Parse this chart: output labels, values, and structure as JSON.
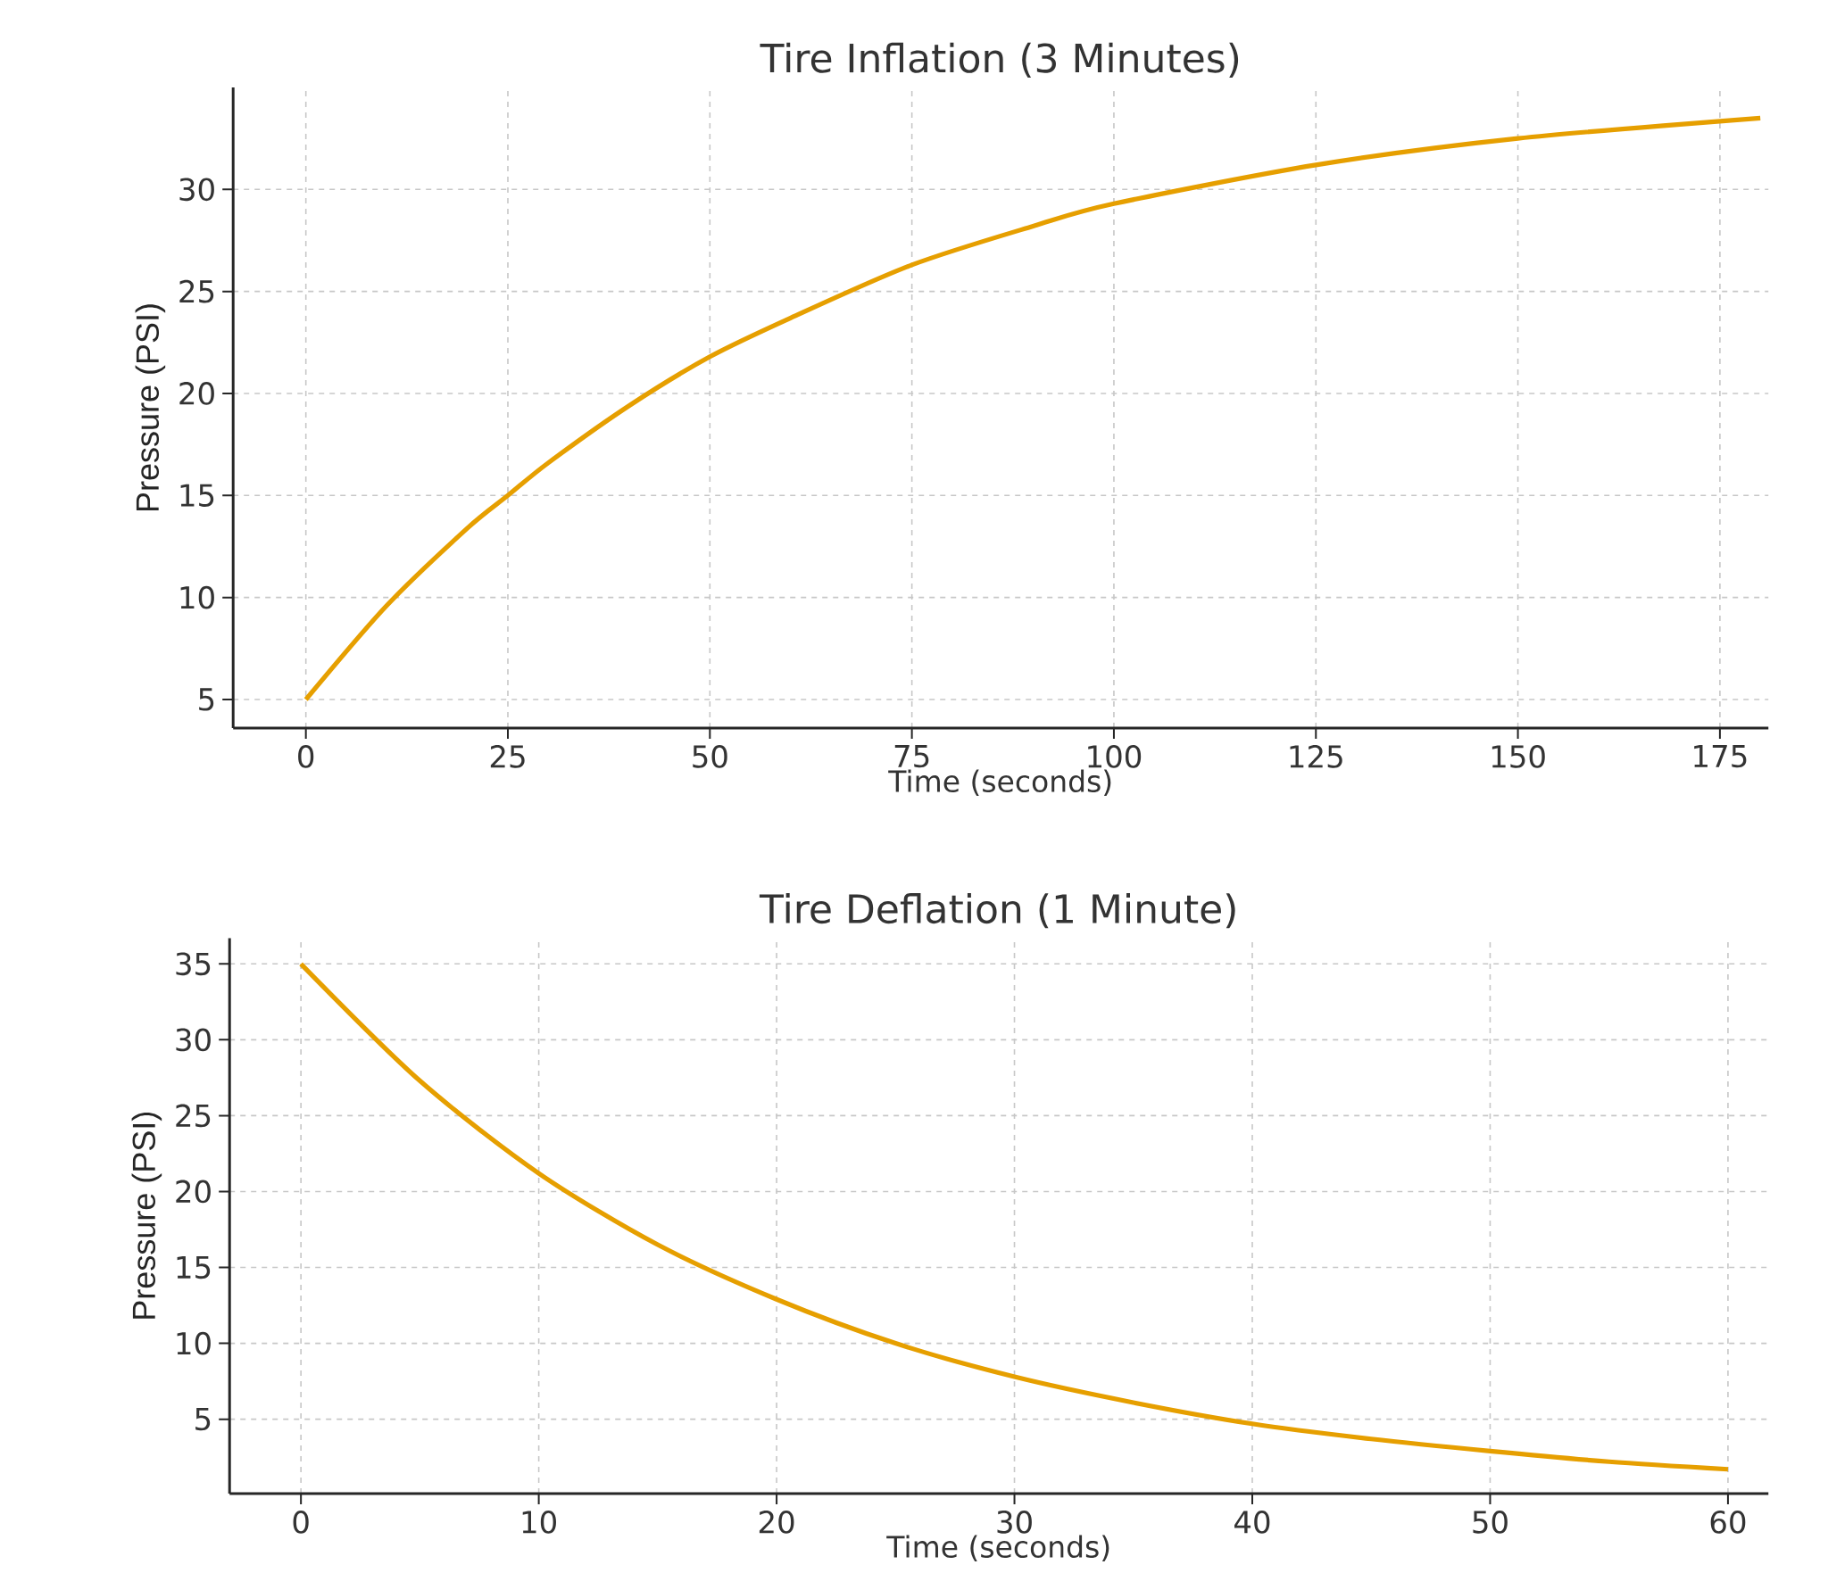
{
  "chart_data": [
    {
      "type": "line",
      "title": "Tire Inflation (3 Minutes)",
      "xlabel": "Time (seconds)",
      "ylabel": "Pressure (PSI)",
      "x": [
        0,
        10,
        20,
        25,
        30,
        40,
        50,
        60,
        75,
        90,
        100,
        125,
        150,
        180
      ],
      "values": [
        5.0,
        9.6,
        13.4,
        15.0,
        16.6,
        19.4,
        21.8,
        23.7,
        26.3,
        28.2,
        29.3,
        31.2,
        32.5,
        33.5
      ],
      "color": "#e69f00",
      "xlim": [
        -9,
        181
      ],
      "ylim": [
        3.6,
        35
      ],
      "xticks": [
        0,
        25,
        50,
        75,
        100,
        125,
        150,
        175
      ],
      "yticks": [
        5,
        10,
        15,
        20,
        25,
        30
      ],
      "grid": true
    },
    {
      "type": "line",
      "title": "Tire Deflation (1 Minute)",
      "xlabel": "Time (seconds)",
      "ylabel": "Pressure (PSI)",
      "x": [
        0,
        5,
        10,
        15,
        20,
        25,
        30,
        35,
        40,
        45,
        50,
        55,
        60
      ],
      "values": [
        35,
        27.3,
        21.2,
        16.5,
        12.9,
        10.0,
        7.8,
        6.1,
        4.7,
        3.7,
        2.9,
        2.2,
        1.7
      ],
      "color": "#e69f00",
      "xlim": [
        -3,
        61.7
      ],
      "ylim": [
        0.1,
        36.7
      ],
      "xticks": [
        0,
        10,
        20,
        30,
        40,
        50,
        60
      ],
      "yticks": [
        5,
        10,
        15,
        20,
        25,
        30,
        35
      ],
      "grid": true
    }
  ]
}
